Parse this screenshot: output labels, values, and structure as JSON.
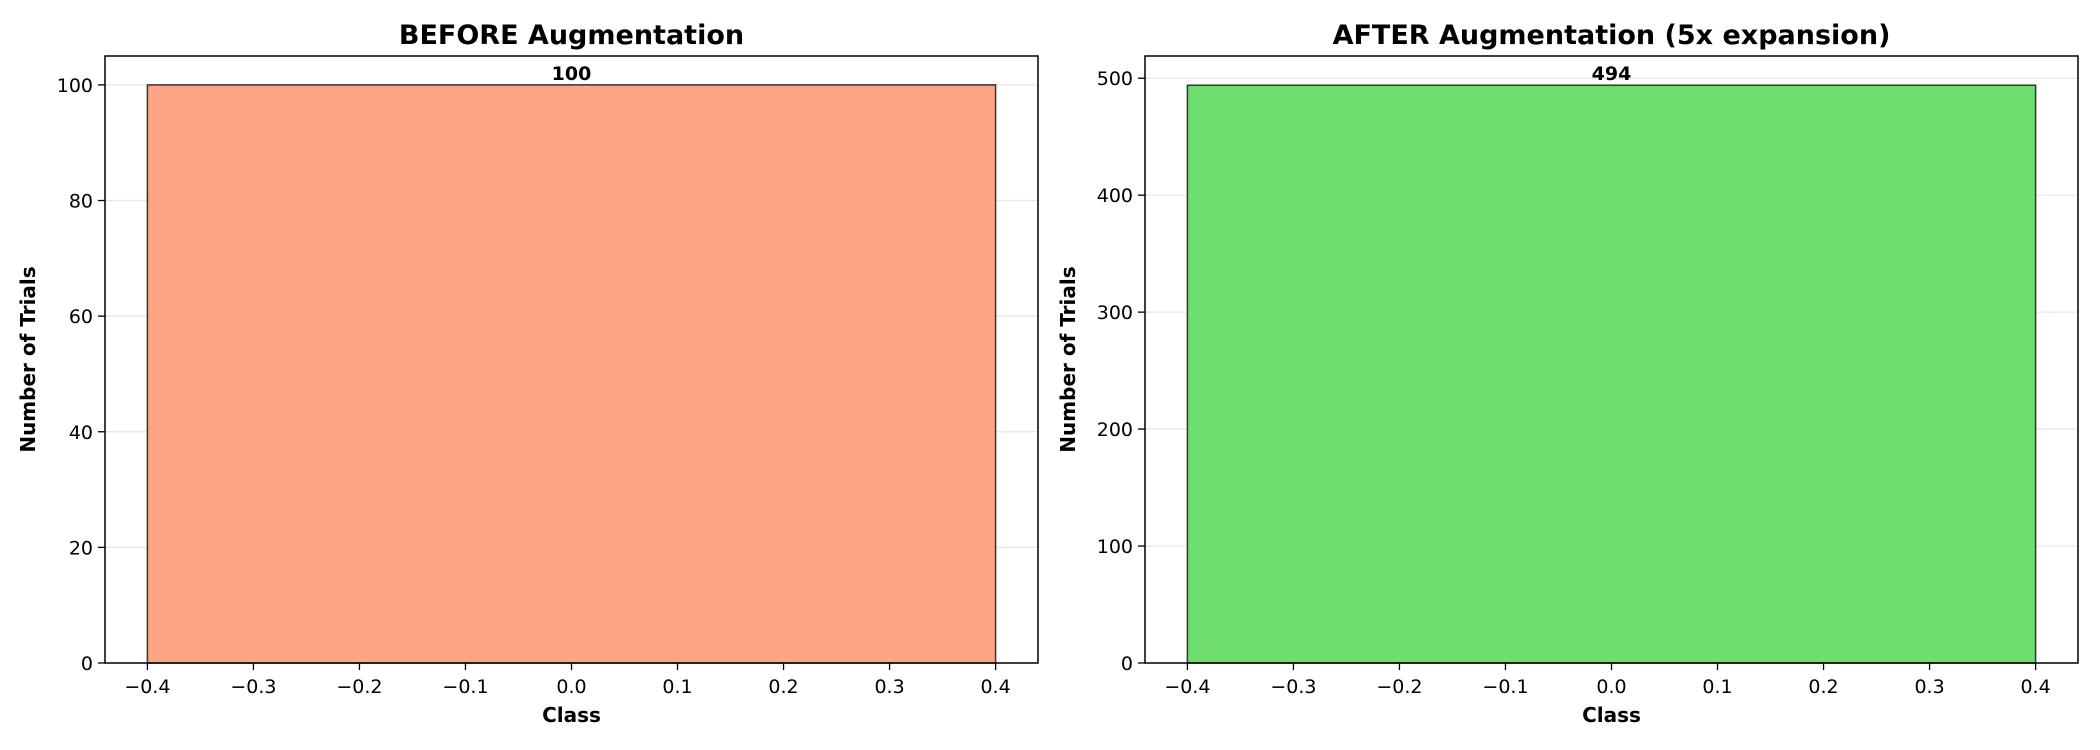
{
  "chart_data": [
    {
      "type": "bar",
      "title": "BEFORE Augmentation",
      "xlabel": "Class",
      "ylabel": "Number of Trials",
      "x": [
        0.0
      ],
      "values": [
        100
      ],
      "bar_width": 0.8,
      "data_labels": [
        "100"
      ],
      "xlim": [
        -0.44,
        0.44
      ],
      "ylim": [
        0,
        105
      ],
      "xticks": [
        -0.4,
        -0.3,
        -0.2,
        -0.1,
        0.0,
        0.1,
        0.2,
        0.3,
        0.4
      ],
      "xtick_labels": [
        "−0.4",
        "−0.3",
        "−0.2",
        "−0.1",
        "0.0",
        "0.1",
        "0.2",
        "0.3",
        "0.4"
      ],
      "yticks": [
        0,
        20,
        40,
        60,
        80,
        100
      ],
      "ytick_labels": [
        "0",
        "20",
        "40",
        "60",
        "80",
        "100"
      ],
      "grid": "y",
      "bar_color": "#ffa484",
      "edge_color": "#333333"
    },
    {
      "type": "bar",
      "title": "AFTER Augmentation (5x expansion)",
      "xlabel": "Class",
      "ylabel": "Number of Trials",
      "x": [
        0.0
      ],
      "values": [
        494
      ],
      "bar_width": 0.8,
      "data_labels": [
        "494"
      ],
      "xlim": [
        -0.44,
        0.44
      ],
      "ylim": [
        0,
        519
      ],
      "xticks": [
        -0.4,
        -0.3,
        -0.2,
        -0.1,
        0.0,
        0.1,
        0.2,
        0.3,
        0.4
      ],
      "xtick_labels": [
        "−0.4",
        "−0.3",
        "−0.2",
        "−0.1",
        "0.0",
        "0.1",
        "0.2",
        "0.3",
        "0.4"
      ],
      "yticks": [
        0,
        100,
        200,
        300,
        400,
        500
      ],
      "ytick_labels": [
        "0",
        "100",
        "200",
        "300",
        "400",
        "500"
      ],
      "grid": "y",
      "bar_color": "#6fdc6f",
      "edge_color": "#333333"
    }
  ]
}
